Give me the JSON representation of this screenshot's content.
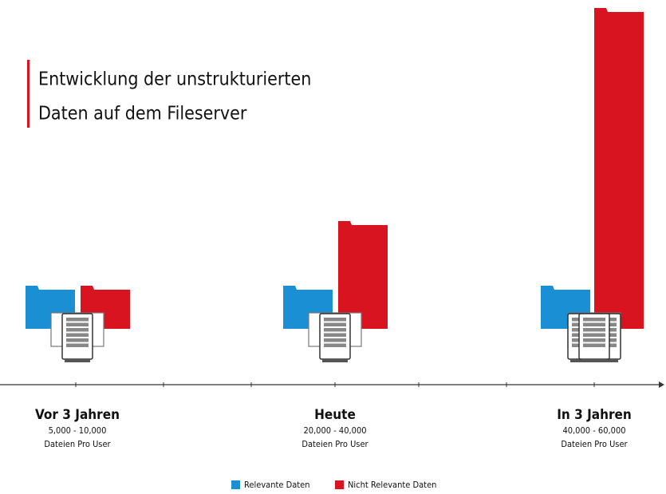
{
  "title": {
    "lines": [
      "Entwicklung der unstrukturierten",
      "Daten auf dem Fileserver"
    ]
  },
  "groups": [
    {
      "label": "Vor 3 Jahren",
      "range": "5,000 - 10,000",
      "unit": "Dateien Pro User"
    },
    {
      "label": "Heute",
      "range": "20,000 - 40,000",
      "unit": "Dateien Pro User"
    },
    {
      "label": "In 3 Jahren",
      "range": "40,000 - 60,000",
      "unit": "Dateien Pro User"
    }
  ],
  "legend": [
    "Relevante Daten",
    "Nicht Relevante Daten"
  ]
}
